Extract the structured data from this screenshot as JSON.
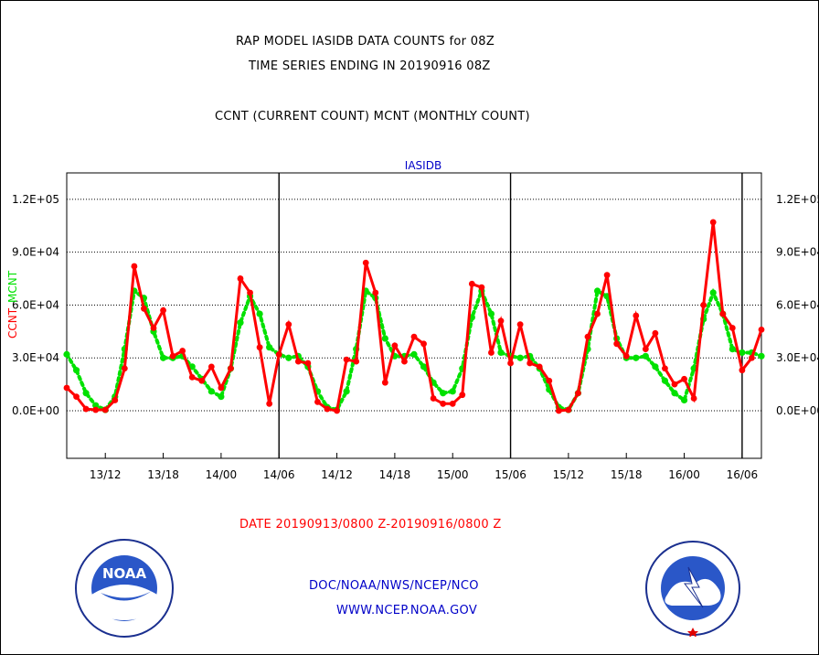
{
  "header": {
    "title1": "RAP MODEL IASIDB DATA COUNTS for 08Z",
    "title2": "TIME SERIES ENDING IN 20190916 08Z",
    "subtitle": "CCNT (CURRENT COUNT) MCNT (MONTHLY COUNT)"
  },
  "chart_data": {
    "type": "line",
    "title": "IASIDB",
    "left_axis_label_red": "CCNT",
    "left_axis_label_green": "MCNT",
    "left_ticks": [
      "1.2E+05",
      "9.0E+04",
      "6.0E+04",
      "3.0E+04",
      "0.0E+00"
    ],
    "right_ticks": [
      "1.2E+05",
      "9.0E+04",
      "6.0E+04",
      "3.0E+04",
      "0.0E+00"
    ],
    "ylim": [
      -27000,
      135000
    ],
    "x_tick_labels": [
      "13/12",
      "13/18",
      "14/00",
      "14/06",
      "14/12",
      "14/18",
      "15/00",
      "15/06",
      "15/12",
      "15/18",
      "16/00",
      "16/06"
    ],
    "x_tick_hours": [
      4,
      10,
      16,
      22,
      28,
      34,
      40,
      46,
      52,
      58,
      64,
      70
    ],
    "xlim": [
      0,
      72
    ],
    "day_boundaries_hours": [
      22,
      46,
      70
    ],
    "xlabel": "DATE 20190913/0800 Z-20190916/0800 Z",
    "grid": true,
    "series": [
      {
        "name": "CCNT",
        "color": "#ff0000",
        "style": "solid",
        "values": [
          13000,
          8000,
          1000,
          500,
          500,
          6000,
          24000,
          82000,
          58000,
          47000,
          57000,
          31000,
          34000,
          19000,
          17000,
          25000,
          13000,
          24000,
          75000,
          67000,
          36000,
          4000,
          32000,
          49000,
          28000,
          27000,
          5000,
          1000,
          0,
          29000,
          28000,
          84000,
          67000,
          16000,
          37000,
          28000,
          42000,
          38000,
          7000,
          4000,
          4000,
          9000,
          72000,
          70000,
          33000,
          51000,
          27000,
          49000,
          27000,
          25000,
          17000,
          0,
          500,
          10000,
          42000,
          55000,
          77000,
          38000,
          31000,
          54000,
          35000,
          44000,
          24000,
          15000,
          18000,
          7000,
          60000,
          107000,
          55000,
          47000,
          23000,
          30000,
          46000
        ]
      },
      {
        "name": "MCNT",
        "color": "#00e100",
        "style": "dotted",
        "values": [
          32000,
          23000,
          10000,
          3000,
          500,
          8000,
          35000,
          68000,
          64000,
          45000,
          30000,
          30000,
          31000,
          25000,
          18000,
          11000,
          8000,
          24000,
          50000,
          65000,
          55000,
          36000,
          32000,
          30000,
          31000,
          25000,
          11000,
          2000,
          500,
          11000,
          35000,
          68000,
          64000,
          41000,
          31000,
          31000,
          32000,
          25000,
          16000,
          10000,
          11000,
          24000,
          53000,
          68000,
          55000,
          33000,
          31000,
          30000,
          31000,
          24000,
          12000,
          2000,
          500,
          10000,
          35000,
          68000,
          65000,
          41000,
          30000,
          30000,
          31000,
          25000,
          17000,
          10000,
          6000,
          24000,
          52000,
          67000,
          55000,
          35000,
          33000,
          33000,
          31000
        ]
      }
    ]
  },
  "footer": {
    "org_line": "DOC/NOAA/NWS/NCEP/NCO",
    "url_line": "WWW.NCEP.NOAA.GOV",
    "noaa_logo_text": "NOAA",
    "nws_logo_text": "NATIONAL WEATHER SERVICE"
  },
  "colors": {
    "ccnt": "#ff0000",
    "mcnt": "#00e100",
    "footer_blue": "#0000c8"
  }
}
